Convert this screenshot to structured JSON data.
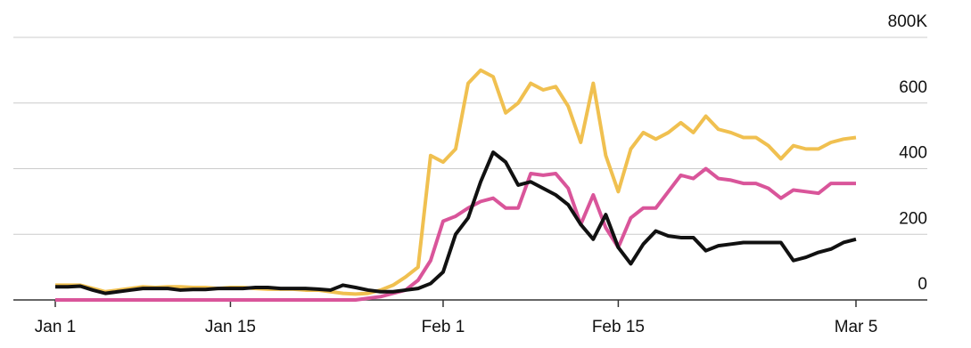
{
  "chart_data": {
    "type": "line",
    "x": [
      0,
      1,
      2,
      3,
      4,
      5,
      6,
      7,
      8,
      9,
      10,
      11,
      12,
      13,
      14,
      15,
      16,
      17,
      18,
      19,
      20,
      21,
      22,
      23,
      24,
      25,
      26,
      27,
      28,
      29,
      30,
      31,
      32,
      33,
      34,
      35,
      36,
      37,
      38,
      39,
      40,
      41,
      42,
      43,
      44,
      45,
      46,
      47,
      48,
      49,
      50,
      51,
      52,
      53,
      54,
      55,
      56,
      57,
      58,
      59,
      60,
      61,
      62,
      63,
      64
    ],
    "series": [
      {
        "color": "#f0c050",
        "values": [
          45,
          45,
          45,
          35,
          25,
          30,
          35,
          40,
          38,
          40,
          40,
          38,
          38,
          35,
          38,
          38,
          35,
          33,
          33,
          33,
          30,
          30,
          25,
          20,
          18,
          20,
          30,
          45,
          70,
          100,
          440,
          420,
          460,
          660,
          700,
          680,
          570,
          600,
          660,
          640,
          650,
          590,
          480,
          660,
          440,
          330,
          460,
          510,
          490,
          510,
          540,
          510,
          560,
          520,
          510,
          495,
          495,
          470,
          430,
          470,
          460,
          460,
          480,
          490,
          495
        ]
      },
      {
        "color": "#d9559a",
        "values": [
          0,
          0,
          0,
          0,
          0,
          0,
          0,
          0,
          0,
          0,
          0,
          0,
          0,
          0,
          0,
          0,
          0,
          0,
          0,
          0,
          0,
          0,
          0,
          0,
          0,
          5,
          10,
          20,
          30,
          60,
          120,
          240,
          255,
          280,
          300,
          310,
          280,
          280,
          385,
          380,
          385,
          340,
          230,
          320,
          220,
          160,
          250,
          280,
          280,
          330,
          380,
          370,
          400,
          370,
          365,
          355,
          355,
          340,
          310,
          335,
          330,
          325,
          355,
          355,
          355
        ]
      },
      {
        "color": "#111111",
        "values": [
          40,
          40,
          42,
          30,
          20,
          25,
          30,
          35,
          35,
          35,
          30,
          32,
          32,
          35,
          35,
          35,
          38,
          38,
          35,
          35,
          35,
          33,
          30,
          45,
          38,
          30,
          25,
          25,
          30,
          35,
          50,
          85,
          200,
          250,
          360,
          450,
          420,
          350,
          360,
          340,
          320,
          290,
          230,
          185,
          260,
          160,
          110,
          170,
          210,
          195,
          190,
          190,
          150,
          165,
          170,
          175,
          175,
          175,
          175,
          120,
          130,
          145,
          155,
          175,
          185
        ]
      }
    ],
    "xlim": [
      0,
      64
    ],
    "xticks": [
      {
        "value": 0,
        "label": "Jan 1"
      },
      {
        "value": 14,
        "label": "Jan 15"
      },
      {
        "value": 31,
        "label": "Feb 1"
      },
      {
        "value": 45,
        "label": "Feb 15"
      },
      {
        "value": 64,
        "label": "Mar 5"
      }
    ],
    "ylim": [
      0,
      800
    ],
    "yticks": [
      0,
      200,
      400,
      600,
      {
        "value": 800,
        "label": "800K"
      }
    ],
    "grid": true
  }
}
